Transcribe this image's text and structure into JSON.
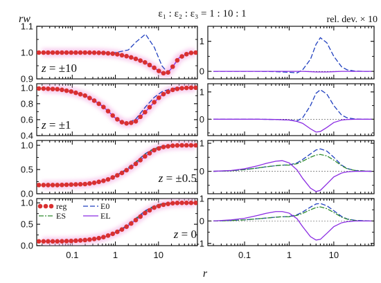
{
  "figure": {
    "title": "ε₁ : ε₂ : ε₃ = 1 : 10 : 1",
    "left_ylabel": "rw",
    "right_ylabel": "rel. dev. × 10",
    "xlabel": "r"
  },
  "legend": {
    "entries": [
      {
        "key": "reg",
        "label": "reg",
        "color": "#d93030",
        "style": "dots"
      },
      {
        "key": "E0",
        "label": "E0",
        "color": "#1f3fbf",
        "style": "dashed"
      },
      {
        "key": "ES",
        "label": "ES",
        "color": "#2e8b2e",
        "style": "dashdot"
      },
      {
        "key": "EL",
        "label": "EL",
        "color": "#8a2be2",
        "style": "solid"
      }
    ]
  },
  "chart_data": [
    {
      "type": "line",
      "panel": "left-1",
      "annotation": "z = ±10",
      "xscale": "log",
      "xlim": [
        0.015,
        80
      ],
      "ylim": [
        0.9,
        1.1
      ],
      "yticks": [
        0.9,
        1.0,
        1.1
      ],
      "ytick_labels": [
        "0.9",
        "1.0",
        "1.1"
      ],
      "xticks": [
        0.1,
        1,
        10
      ],
      "xtick_labels": [],
      "x": [
        0.02,
        0.05,
        0.1,
        0.2,
        0.5,
        1,
        2,
        3,
        5,
        8,
        12,
        16,
        20,
        30,
        50,
        70
      ],
      "series": [
        {
          "key": "reg",
          "values": [
            1.0,
            1.0,
            1.0,
            1.0,
            0.999,
            0.995,
            0.985,
            0.976,
            0.962,
            0.942,
            0.922,
            0.921,
            0.94,
            0.98,
            0.998,
            1.0
          ]
        },
        {
          "key": "E0",
          "values": [
            1.0,
            1.0,
            1.0,
            1.0,
            1.0,
            1.0,
            1.01,
            1.04,
            1.07,
            1.02,
            0.95,
            0.925,
            0.94,
            0.98,
            0.998,
            1.0
          ]
        },
        {
          "key": "EL",
          "values": [
            1.0,
            1.0,
            1.0,
            1.0,
            0.999,
            0.995,
            0.985,
            0.976,
            0.962,
            0.942,
            0.922,
            0.921,
            0.94,
            0.98,
            0.998,
            1.0
          ]
        }
      ]
    },
    {
      "type": "line",
      "panel": "left-2",
      "annotation": "z = ±1",
      "xscale": "log",
      "xlim": [
        0.015,
        80
      ],
      "ylim": [
        0.4,
        1.05
      ],
      "yticks": [
        0.4,
        0.6,
        0.8,
        1.0
      ],
      "ytick_labels": [
        "0.4",
        "0.6",
        "0.8",
        "1.0"
      ],
      "xticks": [
        0.1,
        1,
        10
      ],
      "xtick_labels": [],
      "x": [
        0.02,
        0.05,
        0.1,
        0.2,
        0.3,
        0.5,
        0.7,
        1,
        1.5,
        2,
        3,
        5,
        8,
        12,
        20,
        30,
        50,
        70
      ],
      "series": [
        {
          "key": "reg",
          "values": [
            0.99,
            0.98,
            0.95,
            0.9,
            0.85,
            0.77,
            0.7,
            0.62,
            0.56,
            0.55,
            0.58,
            0.7,
            0.82,
            0.91,
            0.97,
            0.99,
            1.0,
            1.0
          ]
        },
        {
          "key": "E0",
          "values": [
            0.99,
            0.98,
            0.95,
            0.9,
            0.85,
            0.77,
            0.7,
            0.62,
            0.56,
            0.56,
            0.61,
            0.76,
            0.88,
            0.95,
            0.99,
            1.0,
            1.0,
            1.0
          ]
        },
        {
          "key": "EL",
          "values": [
            0.99,
            0.98,
            0.95,
            0.9,
            0.85,
            0.77,
            0.7,
            0.62,
            0.56,
            0.55,
            0.58,
            0.7,
            0.82,
            0.91,
            0.97,
            0.99,
            1.0,
            1.0
          ]
        }
      ]
    },
    {
      "type": "line",
      "panel": "left-3",
      "annotation": "z = ±0.5",
      "xscale": "log",
      "xlim": [
        0.015,
        80
      ],
      "ylim": [
        0.0,
        1.1
      ],
      "yticks": [
        0.0,
        0.5,
        1.0
      ],
      "ytick_labels": [
        "0.0",
        "0.5",
        "1.0"
      ],
      "xticks": [
        0.1,
        1,
        10
      ],
      "xtick_labels": [],
      "x": [
        0.02,
        0.05,
        0.1,
        0.2,
        0.3,
        0.5,
        0.7,
        1,
        1.5,
        2,
        3,
        5,
        8,
        12,
        20,
        30,
        50,
        70
      ],
      "series": [
        {
          "key": "reg",
          "values": [
            0.18,
            0.18,
            0.19,
            0.2,
            0.22,
            0.26,
            0.3,
            0.36,
            0.44,
            0.51,
            0.62,
            0.78,
            0.9,
            0.96,
            0.99,
            1.0,
            1.0,
            1.0
          ]
        },
        {
          "key": "E0",
          "values": [
            0.18,
            0.18,
            0.19,
            0.2,
            0.22,
            0.26,
            0.3,
            0.37,
            0.46,
            0.54,
            0.66,
            0.83,
            0.94,
            0.98,
            1.0,
            1.0,
            1.0,
            1.0
          ]
        },
        {
          "key": "ES",
          "values": [
            0.18,
            0.18,
            0.19,
            0.2,
            0.22,
            0.26,
            0.3,
            0.37,
            0.45,
            0.53,
            0.65,
            0.82,
            0.93,
            0.97,
            0.99,
            1.0,
            1.0,
            1.0
          ]
        },
        {
          "key": "EL",
          "values": [
            0.18,
            0.18,
            0.19,
            0.2,
            0.22,
            0.26,
            0.3,
            0.36,
            0.44,
            0.51,
            0.62,
            0.78,
            0.9,
            0.96,
            0.99,
            1.0,
            1.0,
            1.0
          ]
        }
      ]
    },
    {
      "type": "line",
      "panel": "left-4",
      "annotation": "z = 0",
      "xscale": "log",
      "xlim": [
        0.015,
        80
      ],
      "ylim": [
        0.0,
        1.1
      ],
      "yticks": [
        0.0,
        0.5,
        1.0
      ],
      "ytick_labels": [
        "0.0",
        "0.5",
        "1.0"
      ],
      "xticks": [
        0.1,
        1,
        10
      ],
      "xtick_labels": [
        "0.1",
        "1",
        "10"
      ],
      "x": [
        0.02,
        0.05,
        0.1,
        0.2,
        0.3,
        0.5,
        0.7,
        1,
        1.5,
        2,
        3,
        5,
        8,
        12,
        20,
        30,
        50,
        70
      ],
      "series": [
        {
          "key": "reg",
          "values": [
            0.1,
            0.1,
            0.11,
            0.13,
            0.15,
            0.19,
            0.24,
            0.3,
            0.39,
            0.47,
            0.6,
            0.77,
            0.89,
            0.95,
            0.99,
            1.0,
            1.0,
            1.0
          ]
        },
        {
          "key": "E0",
          "values": [
            0.1,
            0.1,
            0.11,
            0.13,
            0.15,
            0.19,
            0.24,
            0.31,
            0.41,
            0.5,
            0.64,
            0.82,
            0.93,
            0.98,
            1.0,
            1.0,
            1.0,
            1.0
          ]
        },
        {
          "key": "ES",
          "values": [
            0.1,
            0.1,
            0.11,
            0.13,
            0.15,
            0.19,
            0.24,
            0.31,
            0.4,
            0.49,
            0.63,
            0.8,
            0.92,
            0.97,
            0.99,
            1.0,
            1.0,
            1.0
          ]
        },
        {
          "key": "EL",
          "values": [
            0.1,
            0.1,
            0.11,
            0.13,
            0.15,
            0.19,
            0.24,
            0.3,
            0.39,
            0.47,
            0.6,
            0.77,
            0.89,
            0.95,
            0.99,
            1.0,
            1.0,
            1.0
          ]
        }
      ]
    },
    {
      "type": "line",
      "panel": "right-1",
      "xscale": "log",
      "xlim": [
        0.015,
        80
      ],
      "ylim": [
        -0.25,
        1.5
      ],
      "yticks": [
        0,
        1
      ],
      "ytick_labels": [
        "0",
        "1"
      ],
      "xticks": [
        0.1,
        1,
        10
      ],
      "xtick_labels": [],
      "x": [
        0.02,
        0.05,
        0.1,
        0.2,
        0.5,
        1,
        1.5,
        2,
        3,
        4,
        5,
        7,
        10,
        15,
        20,
        30,
        50,
        70
      ],
      "series": [
        {
          "key": "E0",
          "values": [
            0.0,
            0.0,
            0.0,
            0.0,
            -0.01,
            -0.03,
            -0.05,
            0.05,
            0.4,
            0.9,
            1.12,
            0.95,
            0.5,
            0.15,
            0.05,
            0.01,
            0.0,
            0.0
          ]
        },
        {
          "key": "EL",
          "values": [
            0.0,
            0.0,
            0.0,
            0.0,
            0.0,
            0.0,
            0.0,
            0.0,
            -0.01,
            -0.02,
            -0.02,
            -0.02,
            -0.01,
            0.0,
            0.0,
            0.0,
            0.0,
            0.0
          ]
        }
      ]
    },
    {
      "type": "line",
      "panel": "right-2",
      "xscale": "log",
      "xlim": [
        0.015,
        80
      ],
      "ylim": [
        -0.6,
        1.3
      ],
      "yticks": [
        0,
        1
      ],
      "ytick_labels": [
        "0",
        "1"
      ],
      "xticks": [
        0.1,
        1,
        10
      ],
      "xtick_labels": [],
      "x": [
        0.02,
        0.05,
        0.1,
        0.2,
        0.5,
        1,
        1.5,
        2,
        3,
        4,
        5,
        7,
        10,
        15,
        20,
        30,
        50,
        70
      ],
      "series": [
        {
          "key": "E0",
          "values": [
            0.0,
            0.0,
            0.0,
            0.0,
            -0.01,
            -0.03,
            -0.06,
            0.05,
            0.5,
            0.95,
            1.08,
            0.92,
            0.5,
            0.15,
            0.05,
            0.01,
            0.0,
            0.0
          ]
        },
        {
          "key": "EL",
          "values": [
            0.0,
            0.0,
            0.0,
            0.0,
            -0.01,
            -0.03,
            -0.08,
            -0.15,
            -0.35,
            -0.47,
            -0.45,
            -0.3,
            -0.12,
            -0.03,
            -0.01,
            0.0,
            0.0,
            0.0
          ]
        }
      ]
    },
    {
      "type": "line",
      "panel": "right-3",
      "xscale": "log",
      "xlim": [
        0.015,
        80
      ],
      "ylim": [
        -0.8,
        1.1
      ],
      "yticks": [
        0,
        1
      ],
      "ytick_labels": [
        "0",
        "1"
      ],
      "xticks": [
        0.1,
        1,
        10
      ],
      "xtick_labels": [],
      "x": [
        0.02,
        0.05,
        0.1,
        0.2,
        0.3,
        0.5,
        0.7,
        1,
        1.5,
        2,
        3,
        4,
        5,
        7,
        10,
        15,
        20,
        30,
        50,
        70
      ],
      "series": [
        {
          "key": "E0",
          "values": [
            0.0,
            0.02,
            0.06,
            0.12,
            0.16,
            0.2,
            0.22,
            0.23,
            0.3,
            0.42,
            0.62,
            0.76,
            0.8,
            0.72,
            0.5,
            0.22,
            0.1,
            0.03,
            0.01,
            0.0
          ]
        },
        {
          "key": "ES",
          "values": [
            0.0,
            0.02,
            0.06,
            0.12,
            0.16,
            0.2,
            0.22,
            0.22,
            0.27,
            0.36,
            0.5,
            0.58,
            0.6,
            0.55,
            0.4,
            0.2,
            0.09,
            0.03,
            0.01,
            0.0
          ]
        },
        {
          "key": "EL",
          "values": [
            0.0,
            0.03,
            0.09,
            0.2,
            0.28,
            0.36,
            0.38,
            0.3,
            0.05,
            -0.25,
            -0.6,
            -0.72,
            -0.68,
            -0.45,
            -0.2,
            -0.06,
            -0.02,
            0.0,
            0.0,
            0.0
          ]
        }
      ]
    },
    {
      "type": "line",
      "panel": "right-4",
      "xscale": "log",
      "xlim": [
        0.015,
        80
      ],
      "ylim": [
        -1.1,
        1.0
      ],
      "yticks": [
        -1,
        0,
        1
      ],
      "ytick_labels": [
        "-1",
        "0",
        "1"
      ],
      "xticks": [
        0.1,
        1,
        10
      ],
      "xtick_labels": [
        "0.1",
        "1",
        "10"
      ],
      "x": [
        0.02,
        0.05,
        0.1,
        0.2,
        0.3,
        0.5,
        0.7,
        1,
        1.5,
        2,
        3,
        4,
        5,
        7,
        10,
        15,
        20,
        30,
        50,
        70
      ],
      "series": [
        {
          "key": "E0",
          "values": [
            0.0,
            0.02,
            0.05,
            0.1,
            0.13,
            0.17,
            0.19,
            0.2,
            0.28,
            0.4,
            0.62,
            0.76,
            0.78,
            0.68,
            0.46,
            0.2,
            0.09,
            0.03,
            0.01,
            0.0
          ]
        },
        {
          "key": "ES",
          "values": [
            0.0,
            0.02,
            0.05,
            0.1,
            0.13,
            0.17,
            0.19,
            0.19,
            0.25,
            0.34,
            0.5,
            0.6,
            0.63,
            0.55,
            0.38,
            0.17,
            0.08,
            0.02,
            0.0,
            0.0
          ]
        },
        {
          "key": "EL",
          "values": [
            0.0,
            0.05,
            0.12,
            0.25,
            0.34,
            0.42,
            0.42,
            0.35,
            0.1,
            -0.25,
            -0.7,
            -0.85,
            -0.82,
            -0.55,
            -0.25,
            -0.08,
            -0.03,
            0.0,
            0.0,
            0.0
          ]
        }
      ]
    }
  ]
}
